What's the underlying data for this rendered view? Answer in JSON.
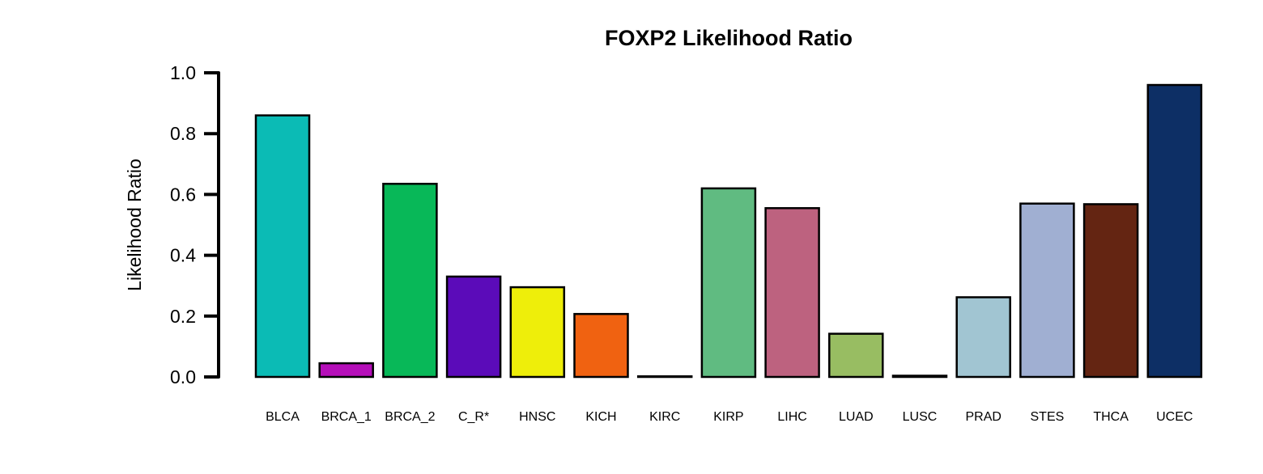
{
  "chart_data": {
    "type": "bar",
    "title": "FOXP2 Likelihood Ratio",
    "ylabel": "Likelihood Ratio",
    "xlabel": "",
    "ylim": [
      0,
      1.0
    ],
    "yticks": [
      "0.0",
      "0.2",
      "0.4",
      "0.6",
      "0.8",
      "1.0"
    ],
    "grid": false,
    "legend": "none",
    "categories": [
      "BLCA",
      "BRCA_1",
      "BRCA_2",
      "C_R*",
      "HNSC",
      "KICH",
      "KIRC",
      "KIRP",
      "LIHC",
      "LUAD",
      "LUSC",
      "PRAD",
      "STES",
      "THCA",
      "UCEC"
    ],
    "values": [
      0.86,
      0.045,
      0.635,
      0.33,
      0.295,
      0.207,
      0.002,
      0.62,
      0.555,
      0.142,
      0.004,
      0.262,
      0.57,
      0.568,
      0.96
    ],
    "colors": [
      "#0bbbb5",
      "#b50fb9",
      "#08b858",
      "#5b0bb9",
      "#eeee0a",
      "#f06211",
      "#000000",
      "#60bb81",
      "#bd627f",
      "#98bd62",
      "#000000",
      "#a1c5d2",
      "#a0afd2",
      "#642512",
      "#0d2f65"
    ]
  }
}
